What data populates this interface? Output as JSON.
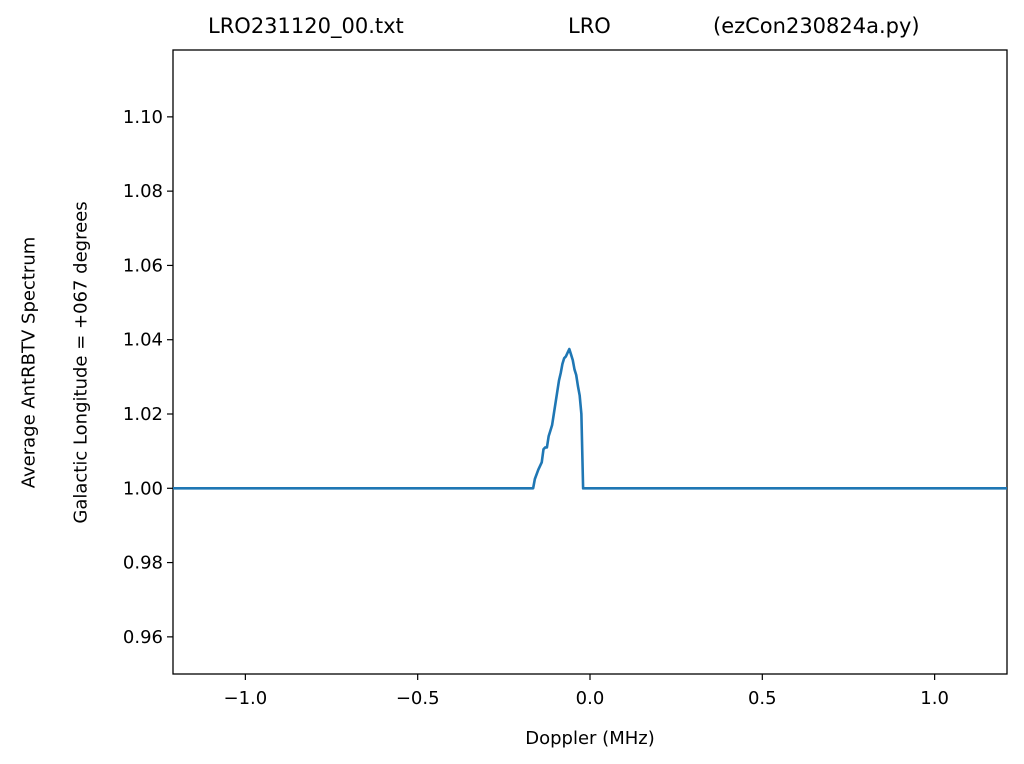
{
  "titles": {
    "left": "LRO231120_00.txt",
    "center": "LRO",
    "right": "(ezCon230824a.py)"
  },
  "chart_data": {
    "type": "line",
    "xlabel": "Doppler (MHz)",
    "ylabel_outer": "Average AntRBTV Spectrum",
    "ylabel_inner": "Galactic Longitude = +067 degrees",
    "xlim": [
      -1.21,
      1.21
    ],
    "ylim": [
      0.95,
      1.118
    ],
    "xticks": [
      -1.0,
      -0.5,
      0.0,
      0.5,
      1.0
    ],
    "xtick_labels": [
      "−1.0",
      "−0.5",
      "0.0",
      "0.5",
      "1.0"
    ],
    "yticks": [
      0.96,
      0.98,
      1.0,
      1.02,
      1.04,
      1.06,
      1.08,
      1.1
    ],
    "ytick_labels": [
      "0.96",
      "0.98",
      "1.00",
      "1.02",
      "1.04",
      "1.06",
      "1.08",
      "1.10"
    ],
    "grid": false,
    "series": [
      {
        "color": "#1f77b4",
        "x": [
          -1.21,
          -0.165,
          -0.16,
          -0.15,
          -0.14,
          -0.135,
          -0.13,
          -0.125,
          -0.12,
          -0.115,
          -0.11,
          -0.105,
          -0.1,
          -0.095,
          -0.09,
          -0.085,
          -0.08,
          -0.075,
          -0.07,
          -0.065,
          -0.06,
          -0.055,
          -0.05,
          -0.045,
          -0.04,
          -0.035,
          -0.03,
          -0.025,
          -0.02,
          -0.015,
          -0.01,
          -0.005,
          0.0,
          0.005,
          1.21
        ],
        "y": [
          1.0,
          1.0,
          1.0025,
          1.005,
          1.007,
          1.0105,
          1.011,
          1.011,
          1.014,
          1.0155,
          1.017,
          1.02,
          1.023,
          1.026,
          1.029,
          1.031,
          1.0335,
          1.035,
          1.0355,
          1.0365,
          1.0375,
          1.036,
          1.0345,
          1.032,
          1.0305,
          1.0275,
          1.025,
          1.02,
          1.0,
          1.0,
          1.0,
          1.0,
          1.0,
          1.0,
          1.0
        ]
      }
    ]
  }
}
